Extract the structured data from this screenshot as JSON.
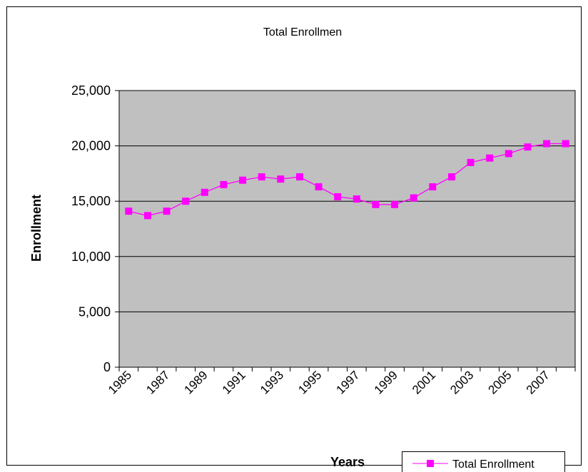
{
  "colors": {
    "plot_background": "#c0c0c0",
    "series_line": "#ff00ff",
    "gridline": "#000000",
    "frame": "#000000"
  },
  "chart_data": {
    "type": "line",
    "title": "Total Enrollmen",
    "xlabel": "Years",
    "ylabel": "Enrollment",
    "ylim": [
      0,
      25000
    ],
    "y_ticks": [
      0,
      5000,
      10000,
      15000,
      20000,
      25000
    ],
    "y_tick_labels": [
      "0",
      "5,000",
      "10,000",
      "15,000",
      "20,000",
      "25,000"
    ],
    "x_tick_labels": [
      "1985",
      "1987",
      "1989",
      "1991",
      "1993",
      "1995",
      "1997",
      "1999",
      "2001",
      "2003",
      "2005",
      "2007"
    ],
    "grid": true,
    "legend_position": "bottom-right",
    "categories": [
      1985,
      1986,
      1987,
      1988,
      1989,
      1990,
      1991,
      1992,
      1993,
      1994,
      1995,
      1996,
      1997,
      1998,
      1999,
      2000,
      2001,
      2002,
      2003,
      2004,
      2005,
      2006,
      2007,
      2008
    ],
    "series": [
      {
        "name": "Total Enrollment",
        "marker": "square",
        "color": "#ff00ff",
        "values": [
          14100,
          13700,
          14100,
          15000,
          15800,
          16500,
          16900,
          17200,
          17000,
          17200,
          16300,
          15400,
          15200,
          14700,
          14700,
          15300,
          16300,
          17200,
          18500,
          18900,
          19300,
          19900,
          20200,
          20200
        ]
      }
    ]
  }
}
